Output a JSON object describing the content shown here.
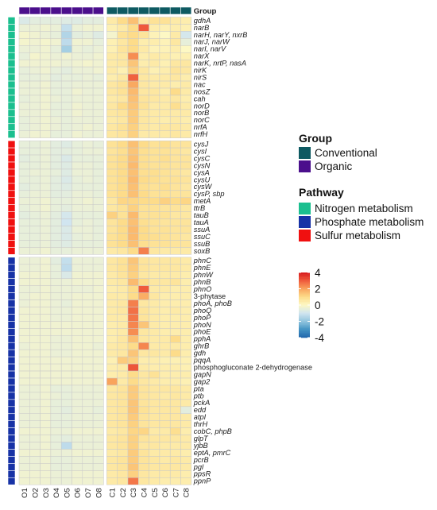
{
  "chart_data": {
    "type": "heatmap",
    "title": "",
    "columns": [
      "O1",
      "O2",
      "O3",
      "O4",
      "O5",
      "O6",
      "O7",
      "O8",
      "C1",
      "C2",
      "C3",
      "C4",
      "C5",
      "C6",
      "C7",
      "C8"
    ],
    "column_group_title": "Group",
    "column_groups": [
      "Organic",
      "Organic",
      "Organic",
      "Organic",
      "Organic",
      "Organic",
      "Organic",
      "Organic",
      "Conventional",
      "Conventional",
      "Conventional",
      "Conventional",
      "Conventional",
      "Conventional",
      "Conventional",
      "Conventional"
    ],
    "rows": [
      "gdhA",
      "narB",
      "narH, narY, nxrB",
      "narJ, narW",
      "narI, narV",
      "narX",
      "narK, nrtP, nasA",
      "nirK",
      "nirS",
      "nac",
      "nosZ",
      "cah",
      "norD",
      "norB",
      "norC",
      "nrfA",
      "nrfH",
      "cysJ",
      "cysI",
      "cysC",
      "cysN",
      "cysA",
      "cysU",
      "cysW",
      "cysP, sbp",
      "metA",
      "ttrB",
      "tauB",
      "tauA",
      "ssuA",
      "ssuC",
      "ssuB",
      "soxB",
      "phnC",
      "phnE",
      "phnW",
      "phnB",
      "phnO",
      "3-phytase",
      "phoA, phoB",
      "phoQ",
      "phoP",
      "phoN",
      "phoE",
      "pphA",
      "ghrB",
      "gdh",
      "pqqA",
      "phosphogluconate 2-dehydrogenase",
      "gapN",
      "gap2",
      "pta",
      "ptb",
      "pckA",
      "edd",
      "atpI",
      "thrH",
      "cobC, phpB",
      "glpT",
      "yjbB",
      "eptA, pmrC",
      "pcrB",
      "pgl",
      "ppsR",
      "ppnP"
    ],
    "row_pathways": [
      "Nitrogen metabolism",
      "Nitrogen metabolism",
      "Nitrogen metabolism",
      "Nitrogen metabolism",
      "Nitrogen metabolism",
      "Nitrogen metabolism",
      "Nitrogen metabolism",
      "Nitrogen metabolism",
      "Nitrogen metabolism",
      "Nitrogen metabolism",
      "Nitrogen metabolism",
      "Nitrogen metabolism",
      "Nitrogen metabolism",
      "Nitrogen metabolism",
      "Nitrogen metabolism",
      "Nitrogen metabolism",
      "Nitrogen metabolism",
      "Sulfur metabolism",
      "Sulfur metabolism",
      "Sulfur metabolism",
      "Sulfur metabolism",
      "Sulfur metabolism",
      "Sulfur metabolism",
      "Sulfur metabolism",
      "Sulfur metabolism",
      "Sulfur metabolism",
      "Sulfur metabolism",
      "Sulfur metabolism",
      "Sulfur metabolism",
      "Sulfur metabolism",
      "Sulfur metabolism",
      "Sulfur metabolism",
      "Sulfur metabolism",
      "Phosphate metabolism",
      "Phosphate metabolism",
      "Phosphate metabolism",
      "Phosphate metabolism",
      "Phosphate metabolism",
      "Phosphate metabolism",
      "Phosphate metabolism",
      "Phosphate metabolism",
      "Phosphate metabolism",
      "Phosphate metabolism",
      "Phosphate metabolism",
      "Phosphate metabolism",
      "Phosphate metabolism",
      "Phosphate metabolism",
      "Phosphate metabolism",
      "Phosphate metabolism",
      "Phosphate metabolism",
      "Phosphate metabolism",
      "Phosphate metabolism",
      "Phosphate metabolism",
      "Phosphate metabolism",
      "Phosphate metabolism",
      "Phosphate metabolism",
      "Phosphate metabolism",
      "Phosphate metabolism",
      "Phosphate metabolism",
      "Phosphate metabolism",
      "Phosphate metabolism",
      "Phosphate metabolism",
      "Phosphate metabolism",
      "Phosphate metabolism",
      "Phosphate metabolism"
    ],
    "values": [
      [
        -0.8,
        -0.6,
        -0.6,
        -0.6,
        -0.7,
        -0.7,
        -0.6,
        -0.6,
        0.5,
        1.0,
        1.5,
        0.6,
        0.8,
        0.8,
        0.5,
        0.4
      ],
      [
        -0.4,
        -0.4,
        -0.3,
        -0.4,
        -1.2,
        -0.4,
        -0.3,
        -0.3,
        0.3,
        0.5,
        1.0,
        3.0,
        0.4,
        0.3,
        0.4,
        0.3
      ],
      [
        -0.2,
        -0.3,
        -0.4,
        -0.5,
        -1.5,
        -0.6,
        -0.5,
        -0.7,
        -0.2,
        0.8,
        1.0,
        0.7,
        0.2,
        0.0,
        0.5,
        -0.9
      ],
      [
        -0.2,
        -0.3,
        -0.2,
        -0.3,
        -1.3,
        -0.3,
        -0.3,
        -0.5,
        0.3,
        0.6,
        1.0,
        0.4,
        0.4,
        0.2,
        0.6,
        -0.5
      ],
      [
        -0.4,
        -0.4,
        -0.3,
        -0.5,
        -1.7,
        -0.4,
        -0.5,
        -0.4,
        0.3,
        0.7,
        1.0,
        0.5,
        0.2,
        0.2,
        0.4,
        0.0
      ],
      [
        -0.5,
        -0.2,
        -0.3,
        -0.4,
        -0.3,
        -0.4,
        -0.4,
        -0.3,
        0.5,
        0.6,
        2.3,
        0.4,
        0.5,
        0.4,
        0.3,
        0.3
      ],
      [
        -0.3,
        -0.3,
        -0.3,
        -0.3,
        -0.4,
        -0.3,
        -0.2,
        -0.3,
        0.5,
        0.6,
        1.4,
        0.4,
        0.5,
        0.3,
        0.6,
        0.6
      ],
      [
        -0.5,
        -0.4,
        -0.3,
        -0.5,
        -0.6,
        -0.4,
        -0.4,
        -0.3,
        0.5,
        0.3,
        1.2,
        0.6,
        0.3,
        0.4,
        0.7,
        0.6
      ],
      [
        -0.5,
        -0.5,
        -0.4,
        -0.6,
        -0.5,
        -0.5,
        -0.4,
        -0.5,
        0.4,
        0.6,
        2.9,
        0.6,
        0.5,
        0.5,
        0.6,
        0.4
      ],
      [
        -0.4,
        -0.4,
        -0.3,
        -0.5,
        -0.5,
        -0.4,
        -0.4,
        -0.4,
        0.6,
        0.8,
        1.9,
        0.6,
        0.5,
        0.5,
        0.4,
        0.5
      ],
      [
        -0.4,
        -0.4,
        -0.3,
        -0.5,
        -0.5,
        -0.3,
        -0.4,
        -0.4,
        0.6,
        0.8,
        1.6,
        0.6,
        0.6,
        0.4,
        1.0,
        0.5
      ],
      [
        -0.5,
        -0.4,
        -0.3,
        -0.4,
        -0.5,
        -0.4,
        -0.4,
        -0.4,
        0.5,
        0.6,
        1.5,
        0.7,
        0.6,
        0.5,
        0.6,
        0.4
      ],
      [
        -0.4,
        -0.4,
        -0.3,
        -0.5,
        -0.5,
        -0.3,
        -0.4,
        -0.4,
        0.6,
        1.0,
        1.4,
        0.8,
        0.5,
        0.5,
        0.9,
        0.5
      ],
      [
        -0.4,
        -0.4,
        -0.3,
        -0.5,
        -0.5,
        -0.3,
        -0.4,
        -0.4,
        0.6,
        0.7,
        1.3,
        0.6,
        0.5,
        0.5,
        0.5,
        0.5
      ],
      [
        -0.5,
        -0.4,
        -0.3,
        -0.4,
        -0.5,
        -0.4,
        -0.4,
        -0.4,
        0.5,
        0.6,
        1.3,
        0.6,
        0.5,
        0.4,
        0.5,
        0.4
      ],
      [
        -0.5,
        -0.4,
        -0.3,
        -0.4,
        -0.5,
        -0.4,
        -0.3,
        -0.4,
        0.6,
        0.8,
        1.2,
        0.6,
        0.5,
        0.6,
        0.6,
        0.5
      ],
      [
        -0.4,
        -0.3,
        -0.3,
        -0.5,
        -0.5,
        -0.3,
        -0.4,
        -0.4,
        0.6,
        0.7,
        1.2,
        0.5,
        0.5,
        0.5,
        0.6,
        0.5
      ],
      [
        -0.5,
        -0.5,
        -0.4,
        -0.6,
        -0.7,
        -0.5,
        -0.4,
        -0.5,
        0.8,
        1.0,
        1.5,
        1.0,
        0.8,
        0.9,
        0.7,
        0.7
      ],
      [
        -0.5,
        -0.5,
        -0.4,
        -0.6,
        -0.6,
        -0.5,
        -0.4,
        -0.4,
        0.7,
        0.9,
        1.4,
        0.9,
        0.8,
        0.8,
        0.7,
        0.6
      ],
      [
        -0.6,
        -0.5,
        -0.4,
        -0.6,
        -0.8,
        -0.5,
        -0.5,
        -0.5,
        0.8,
        1.0,
        1.5,
        0.9,
        0.8,
        0.9,
        0.7,
        0.7
      ],
      [
        -0.5,
        -0.5,
        -0.4,
        -0.6,
        -0.7,
        -0.4,
        -0.4,
        -0.5,
        0.8,
        1.0,
        1.6,
        0.9,
        0.8,
        0.8,
        0.7,
        0.7
      ],
      [
        -0.5,
        -0.4,
        -0.4,
        -0.5,
        -0.7,
        -0.4,
        -0.4,
        -0.5,
        0.8,
        1.0,
        1.5,
        0.9,
        0.9,
        0.8,
        0.7,
        0.6
      ],
      [
        -0.5,
        -0.5,
        -0.4,
        -0.6,
        -0.8,
        -0.5,
        -0.4,
        -0.5,
        0.8,
        1.0,
        1.6,
        1.0,
        0.9,
        0.8,
        0.8,
        0.7
      ],
      [
        -0.6,
        -0.5,
        -0.4,
        -0.6,
        -0.7,
        -0.5,
        -0.5,
        -0.5,
        0.8,
        1.0,
        1.5,
        0.9,
        0.8,
        0.9,
        0.7,
        0.6
      ],
      [
        -0.5,
        -0.4,
        -0.4,
        -0.6,
        -0.6,
        -0.4,
        -0.4,
        -0.5,
        0.8,
        1.0,
        1.5,
        1.0,
        0.8,
        0.8,
        0.7,
        0.7
      ],
      [
        -0.4,
        -0.4,
        -0.3,
        -0.5,
        -0.5,
        -0.4,
        -0.3,
        -0.4,
        0.6,
        1.1,
        1.1,
        1.0,
        1.0,
        1.2,
        1.0,
        1.1
      ],
      [
        -0.5,
        -0.4,
        -0.3,
        -0.5,
        -0.6,
        -0.4,
        -0.4,
        -0.4,
        0.6,
        0.8,
        1.2,
        0.8,
        0.8,
        0.7,
        0.7,
        0.6
      ],
      [
        -0.6,
        -0.5,
        -0.4,
        -0.6,
        -0.9,
        -0.5,
        -0.5,
        -0.5,
        1.2,
        0.8,
        1.6,
        0.8,
        0.8,
        0.8,
        0.6,
        0.6
      ],
      [
        -0.5,
        -0.5,
        -0.4,
        -0.6,
        -1.0,
        -0.5,
        -0.4,
        -0.5,
        0.7,
        1.0,
        1.5,
        0.9,
        0.8,
        0.7,
        0.7,
        0.7
      ],
      [
        -0.5,
        -0.5,
        -0.4,
        -0.6,
        -0.8,
        -0.4,
        -0.4,
        -0.5,
        0.7,
        1.0,
        1.6,
        1.0,
        0.8,
        0.8,
        0.7,
        0.7
      ],
      [
        -0.5,
        -0.5,
        -0.4,
        -0.6,
        -0.8,
        -0.5,
        -0.4,
        -0.5,
        0.8,
        1.0,
        1.6,
        1.0,
        0.9,
        0.8,
        0.7,
        0.6
      ],
      [
        -0.5,
        -0.5,
        -0.4,
        -0.6,
        -0.7,
        -0.5,
        -0.5,
        -0.5,
        0.8,
        1.0,
        1.5,
        0.9,
        0.8,
        0.8,
        0.7,
        0.7
      ],
      [
        -0.4,
        -0.4,
        -0.3,
        -0.5,
        -0.5,
        -0.4,
        -0.4,
        -0.4,
        0.5,
        0.6,
        1.0,
        2.5,
        0.6,
        0.5,
        0.5,
        0.5
      ],
      [
        -0.4,
        -0.4,
        -0.3,
        -0.6,
        -1.2,
        -0.4,
        -0.4,
        -0.4,
        0.6,
        0.8,
        1.4,
        0.7,
        0.6,
        0.6,
        0.6,
        0.5
      ],
      [
        -0.4,
        -0.4,
        -0.3,
        -0.5,
        -1.3,
        -0.4,
        -0.4,
        -0.4,
        0.6,
        0.8,
        1.3,
        0.7,
        0.6,
        0.6,
        0.6,
        0.5
      ],
      [
        -0.3,
        -0.3,
        -0.3,
        -0.5,
        -0.8,
        -0.3,
        -0.3,
        -0.3,
        0.5,
        0.7,
        1.2,
        0.6,
        0.5,
        0.5,
        0.5,
        0.4
      ],
      [
        -0.3,
        -0.3,
        -0.3,
        -0.4,
        -0.4,
        -0.3,
        -0.3,
        -0.3,
        0.5,
        0.6,
        1.6,
        1.0,
        0.6,
        0.6,
        0.7,
        0.4
      ],
      [
        -0.4,
        -0.4,
        -0.3,
        -0.4,
        -0.4,
        -0.4,
        -0.4,
        -0.3,
        0.4,
        0.5,
        1.0,
        3.0,
        0.5,
        0.5,
        0.4,
        0.4
      ],
      [
        -0.4,
        -0.3,
        -0.3,
        -0.4,
        -0.4,
        -0.3,
        -0.3,
        -0.3,
        0.5,
        0.5,
        1.0,
        1.8,
        0.6,
        0.4,
        0.4,
        0.4
      ],
      [
        -0.4,
        -0.3,
        -0.3,
        -0.4,
        -0.5,
        -0.3,
        -0.3,
        -0.3,
        0.5,
        0.6,
        2.5,
        0.6,
        0.5,
        0.4,
        0.4,
        0.4
      ],
      [
        -0.3,
        -0.3,
        -0.3,
        -0.4,
        -0.4,
        -0.3,
        -0.3,
        -0.3,
        0.5,
        0.6,
        2.7,
        0.7,
        0.5,
        0.4,
        0.5,
        0.4
      ],
      [
        -0.3,
        -0.3,
        -0.3,
        -0.4,
        -0.4,
        -0.3,
        -0.3,
        -0.3,
        0.5,
        0.5,
        2.6,
        0.7,
        0.5,
        0.4,
        0.4,
        0.4
      ],
      [
        -0.3,
        -0.3,
        -0.3,
        -0.3,
        -0.3,
        -0.3,
        -0.3,
        -0.3,
        0.4,
        0.5,
        2.4,
        1.4,
        0.5,
        0.4,
        0.4,
        0.4
      ],
      [
        -0.3,
        -0.3,
        -0.3,
        -0.3,
        -0.3,
        -0.3,
        -0.3,
        -0.3,
        0.4,
        0.5,
        2.3,
        0.6,
        0.5,
        0.4,
        0.4,
        0.4
      ],
      [
        -0.3,
        -0.3,
        -0.3,
        -0.4,
        -0.4,
        -0.3,
        -0.3,
        -0.3,
        0.4,
        0.6,
        1.5,
        0.6,
        0.5,
        0.5,
        1.0,
        0.4
      ],
      [
        -0.4,
        -0.3,
        -0.3,
        -0.4,
        -0.4,
        -0.3,
        -0.3,
        -0.4,
        0.5,
        0.6,
        1.0,
        2.4,
        0.5,
        0.5,
        0.5,
        0.4
      ],
      [
        -0.3,
        -0.3,
        -0.3,
        -0.4,
        -0.4,
        -0.3,
        -0.3,
        -0.3,
        0.5,
        0.6,
        1.4,
        0.6,
        0.6,
        0.5,
        1.0,
        0.4
      ],
      [
        -0.3,
        -0.3,
        -0.3,
        -0.3,
        -0.3,
        -0.3,
        -0.3,
        -0.3,
        0.3,
        1.3,
        1.2,
        0.4,
        0.4,
        0.3,
        0.3,
        0.3
      ],
      [
        -0.3,
        -0.3,
        -0.3,
        -0.3,
        -0.3,
        -0.3,
        -0.3,
        -0.3,
        0.4,
        0.5,
        3.1,
        0.5,
        0.4,
        0.4,
        0.4,
        0.3
      ],
      [
        -0.3,
        -0.3,
        -0.3,
        -0.3,
        -0.3,
        -0.3,
        -0.3,
        -0.3,
        0.4,
        0.5,
        1.0,
        0.6,
        0.8,
        0.4,
        0.4,
        0.4
      ],
      [
        -0.3,
        -0.3,
        -0.3,
        -0.3,
        -0.3,
        -0.3,
        -0.3,
        -0.3,
        2.0,
        0.5,
        1.0,
        0.6,
        0.5,
        0.4,
        0.4,
        0.3
      ],
      [
        -0.4,
        -0.4,
        -0.3,
        -0.5,
        -0.5,
        -0.4,
        -0.4,
        -0.4,
        0.6,
        0.7,
        1.3,
        0.7,
        0.6,
        0.6,
        0.6,
        0.5
      ],
      [
        -0.4,
        -0.4,
        -0.3,
        -0.4,
        -0.5,
        -0.4,
        -0.4,
        -0.4,
        0.6,
        0.7,
        1.3,
        0.7,
        0.6,
        0.5,
        0.6,
        0.5
      ],
      [
        -0.4,
        -0.4,
        -0.3,
        -0.5,
        -0.5,
        -0.4,
        -0.4,
        -0.4,
        0.6,
        0.7,
        1.4,
        0.7,
        0.6,
        0.6,
        0.6,
        0.5
      ],
      [
        -0.4,
        -0.4,
        -0.3,
        -0.5,
        -0.6,
        -0.4,
        -0.4,
        -0.5,
        0.6,
        0.7,
        1.4,
        0.8,
        0.6,
        0.6,
        0.6,
        -0.6
      ],
      [
        -0.4,
        -0.4,
        -0.3,
        -0.5,
        -0.5,
        -0.4,
        -0.4,
        -0.4,
        0.6,
        0.7,
        1.3,
        0.7,
        0.6,
        0.6,
        0.6,
        0.5
      ],
      [
        -0.4,
        -0.4,
        -0.3,
        -0.5,
        -0.5,
        -0.4,
        -0.4,
        -0.4,
        0.6,
        0.7,
        1.2,
        0.7,
        0.6,
        0.6,
        0.6,
        0.5
      ],
      [
        -0.3,
        -0.3,
        -0.3,
        -0.4,
        -0.4,
        -0.3,
        -0.3,
        -0.3,
        0.5,
        0.6,
        1.1,
        1.1,
        0.5,
        0.5,
        0.9,
        0.4
      ],
      [
        -0.4,
        -0.4,
        -0.3,
        -0.5,
        -0.6,
        -0.4,
        -0.4,
        -0.4,
        0.6,
        0.7,
        1.2,
        0.7,
        0.6,
        0.6,
        0.6,
        0.5
      ],
      [
        -0.4,
        -0.4,
        -0.3,
        -0.5,
        -1.3,
        -0.4,
        -0.4,
        -0.4,
        0.6,
        0.7,
        1.2,
        0.6,
        0.6,
        0.5,
        0.5,
        0.5
      ],
      [
        -0.3,
        -0.3,
        -0.3,
        -0.4,
        -0.4,
        -0.3,
        -0.3,
        -0.3,
        0.5,
        0.6,
        1.3,
        0.7,
        0.5,
        0.5,
        0.5,
        0.4
      ],
      [
        -0.4,
        -0.4,
        -0.3,
        -0.5,
        -0.5,
        -0.4,
        -0.4,
        -0.4,
        0.6,
        0.7,
        1.3,
        0.7,
        0.6,
        0.5,
        0.6,
        0.5
      ],
      [
        -0.4,
        -0.4,
        -0.3,
        -0.5,
        -0.5,
        -0.4,
        -0.4,
        -0.4,
        0.6,
        0.7,
        1.4,
        0.7,
        0.6,
        0.6,
        0.6,
        0.5
      ],
      [
        -0.3,
        -0.3,
        -0.3,
        -0.4,
        -0.4,
        -0.3,
        -0.3,
        -0.3,
        0.5,
        0.6,
        1.2,
        0.6,
        0.5,
        0.5,
        0.5,
        0.4
      ],
      [
        -0.3,
        -0.3,
        -0.3,
        -0.4,
        -0.4,
        -0.3,
        -0.3,
        -0.3,
        0.5,
        0.6,
        2.6,
        0.6,
        0.5,
        0.4,
        0.4,
        0.4
      ]
    ],
    "color_scale": {
      "min": -4,
      "max": 4,
      "ticks": [
        4,
        2,
        0,
        -2,
        -4
      ],
      "colors": [
        "#2166ac",
        "#4393c3",
        "#92c5de",
        "#d1e5f0",
        "#fdf8c4",
        "#fddc8a",
        "#f9a35c",
        "#ef5a3c",
        "#d7191c"
      ]
    },
    "legend_group": {
      "title": "Group",
      "items": [
        {
          "label": "Conventional",
          "color": "#0e5a62"
        },
        {
          "label": "Organic",
          "color": "#4b0f8c"
        }
      ]
    },
    "legend_pathway": {
      "title": "Pathway",
      "items": [
        {
          "label": "Nitrogen metabolism",
          "color": "#1bbf8f"
        },
        {
          "label": "Phosphate metabolism",
          "color": "#1732a6"
        },
        {
          "label": "Sulfur metabolism",
          "color": "#f01010"
        }
      ]
    }
  }
}
